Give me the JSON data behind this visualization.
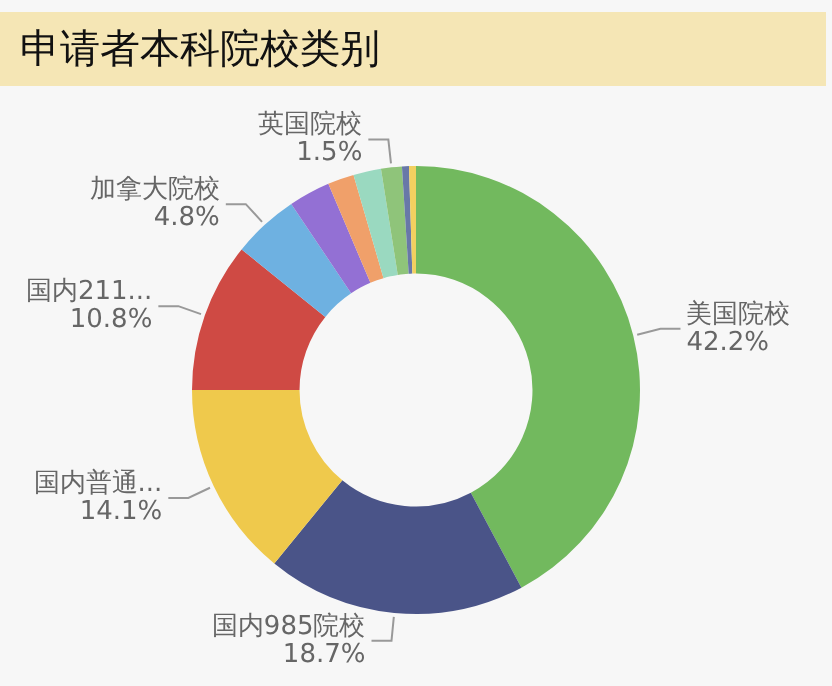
{
  "chart_data": {
    "type": "donut",
    "title": "申请者本科院校类别",
    "categories": [
      "美国院校",
      "国内985院校",
      "国内普通...",
      "国内211...",
      "加拿大院校",
      null,
      null,
      null,
      "英国院校",
      null,
      null
    ],
    "values": [
      42.2,
      18.7,
      14.1,
      10.8,
      4.8,
      3.0,
      1.9,
      2.0,
      1.5,
      0.5,
      0.5
    ],
    "colors": [
      "#72b95e",
      "#4a5488",
      "#efc94c",
      "#cf4a44",
      "#6eb1e1",
      "#9370d4",
      "#f0a06a",
      "#9ad9c0",
      "#8fc47a",
      "#6878a8",
      "#f2d060"
    ],
    "value_labels": [
      "42.2%",
      "18.7%",
      "14.1%",
      "10.8%",
      "4.8%",
      null,
      null,
      null,
      "1.5%",
      null,
      null
    ],
    "legend": false
  }
}
